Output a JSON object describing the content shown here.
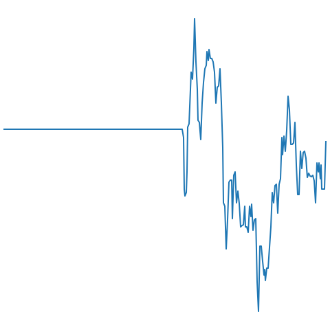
{
  "chart_data": {
    "type": "line",
    "color": "#1f77b4",
    "x": [
      0,
      260,
      262,
      263,
      264,
      266,
      267,
      268,
      270,
      272,
      273,
      275,
      277,
      278,
      280,
      282,
      283,
      285,
      287,
      289,
      291,
      293,
      295,
      296,
      298,
      299,
      301,
      303,
      305,
      307,
      309,
      311,
      313,
      315,
      317,
      319,
      320,
      322,
      324,
      326,
      328,
      330,
      332,
      333,
      335,
      337,
      339,
      341,
      343,
      345,
      347,
      349,
      351,
      352,
      354,
      356,
      358,
      360,
      361,
      363,
      365,
      367,
      369,
      371,
      373,
      375,
      377,
      379,
      380,
      381,
      383,
      385,
      387,
      389,
      391,
      393,
      395,
      397,
      399,
      401,
      403,
      405,
      406,
      408,
      410,
      412,
      414,
      416,
      418,
      420,
      422,
      424,
      426,
      428,
      430,
      432,
      434,
      436,
      438,
      440,
      442,
      444,
      446,
      448,
      450,
      452,
      454,
      456,
      458,
      459,
      461,
      462,
      463,
      465,
      467,
      469
    ],
    "values": [
      0,
      0,
      -12,
      -87,
      -97,
      -92,
      -62,
      3,
      8,
      58,
      83,
      73,
      118,
      161,
      98,
      58,
      13,
      10,
      -15,
      38,
      68,
      88,
      93,
      113,
      100,
      116,
      103,
      103,
      98,
      83,
      38,
      61,
      63,
      88,
      38,
      -27,
      -107,
      -112,
      -174,
      -132,
      -77,
      -74,
      -74,
      -130,
      -67,
      -62,
      -107,
      -90,
      -108,
      -142,
      -140,
      -139,
      -112,
      -142,
      -142,
      -150,
      -112,
      -127,
      -109,
      -147,
      -132,
      -130,
      -222,
      -265,
      -170,
      -170,
      -192,
      -212,
      -204,
      -220,
      -202,
      -202,
      -172,
      -142,
      -92,
      -107,
      -82,
      -80,
      -122,
      -80,
      -72,
      -12,
      -37,
      -10,
      -32,
      -2,
      48,
      28,
      -22,
      -22,
      -20,
      10,
      -52,
      -95,
      -95,
      -32,
      -57,
      -34,
      -32,
      -42,
      -70,
      -64,
      -68,
      -69,
      -67,
      -75,
      -107,
      -49,
      -62,
      -49,
      -72,
      -52,
      -87,
      -87,
      -87,
      -17
    ],
    "xlim": [
      0,
      470
    ],
    "ylim": [
      -292,
      188
    ]
  }
}
